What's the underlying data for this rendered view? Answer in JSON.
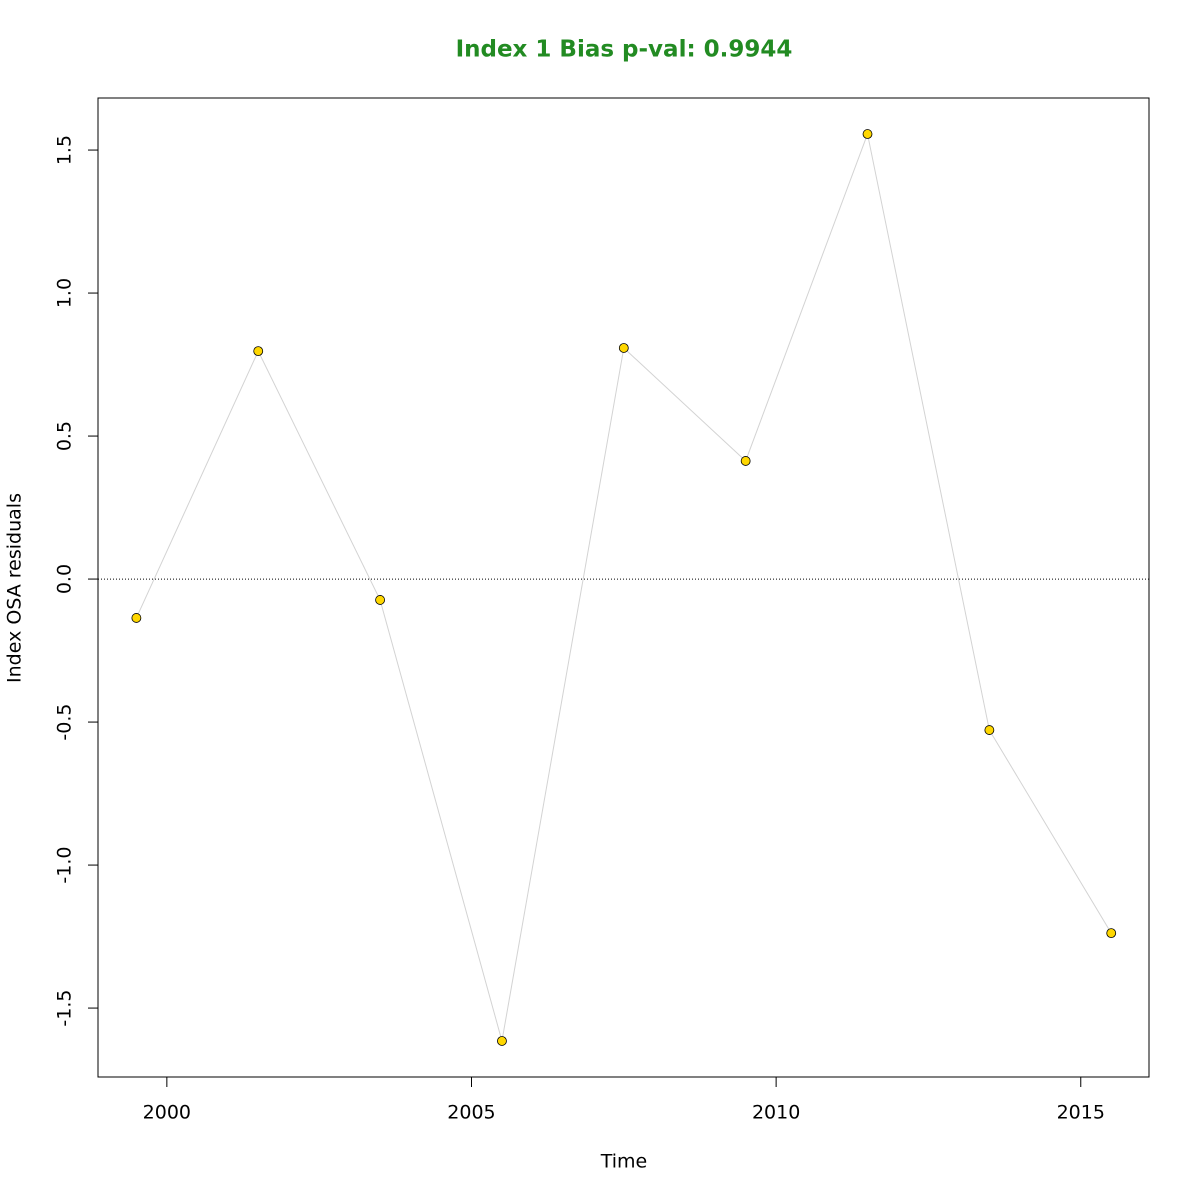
{
  "chart_data": {
    "type": "line",
    "title": "Index 1 Bias p-val: 0.9944",
    "title_color": "#228b22",
    "x_label": "Time",
    "y_label": "Index OSA residuals",
    "x": [
      1999.5,
      2001.5,
      2003.5,
      2005.5,
      2007.5,
      2009.5,
      2011.5,
      2013.5,
      2015.5
    ],
    "series": [
      {
        "name": "Index 1",
        "color": "#d3d3d3",
        "marker_color": "#ffd700",
        "values": [
          -0.136,
          0.797,
          -0.073,
          -1.615,
          0.808,
          0.413,
          1.556,
          -0.528,
          -1.238
        ]
      }
    ],
    "xlim": [
      1998.87,
      2016.12
    ],
    "xticks": [
      2000,
      2005,
      2010,
      2015
    ],
    "ylim": [
      -1.741,
      1.682
    ],
    "yticks": [
      {
        "value": -1.5,
        "label": "-1.5"
      },
      {
        "value": -1,
        "label": "-1.0"
      },
      -0.5,
      {
        "value": 0,
        "label": "0.0"
      },
      0.5,
      {
        "value": 1,
        "label": "1.0"
      },
      1.5
    ],
    "reference_line": 0
  }
}
